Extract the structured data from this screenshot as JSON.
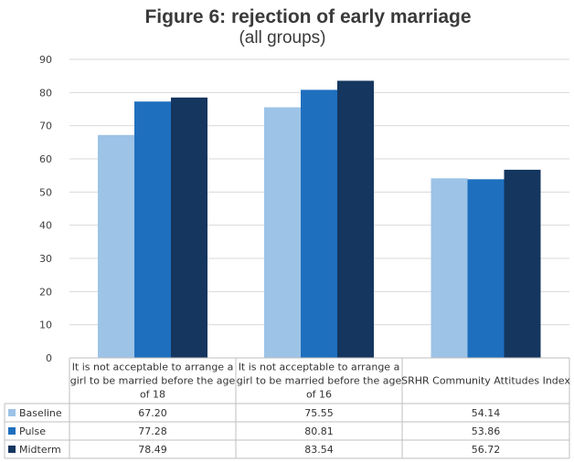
{
  "chart_data": {
    "type": "bar",
    "title": "Figure 6: rejection of early marriage",
    "subtitle": "(all groups)",
    "categories": [
      [
        "It is not acceptable to arrange a",
        "girl to be married before the age",
        "of 18"
      ],
      [
        "It is not acceptable to arrange a",
        "girl to be married before the age",
        "of 16"
      ],
      [
        "SRHR Community Attitudes Index"
      ]
    ],
    "series": [
      {
        "name": "Baseline",
        "color": "#9dc3e6",
        "values": [
          67.2,
          75.55,
          54.14
        ],
        "labels": [
          "67.20",
          "75.55",
          "54.14"
        ]
      },
      {
        "name": "Pulse",
        "color": "#1f6fbf",
        "values": [
          77.28,
          80.81,
          53.86
        ],
        "labels": [
          "77.28",
          "80.81",
          "53.86"
        ]
      },
      {
        "name": "Midterm",
        "color": "#14365f",
        "values": [
          78.49,
          83.54,
          56.72
        ],
        "labels": [
          "78.49",
          "83.54",
          "56.72"
        ]
      }
    ],
    "ylim": [
      0,
      90
    ],
    "yticks": [
      "0",
      "10",
      "20",
      "30",
      "40",
      "50",
      "60",
      "70",
      "80",
      "90"
    ],
    "grid": true,
    "legend": "data-table"
  }
}
